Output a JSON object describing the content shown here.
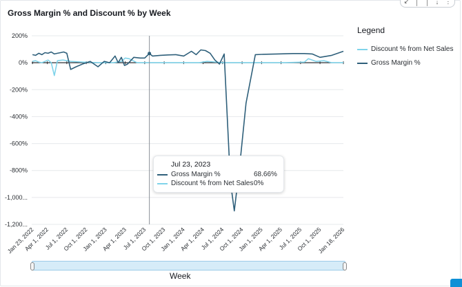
{
  "header": {
    "title": "Gross Margin % and Discount % by Week"
  },
  "toolbar_icons": [
    "collapse-icon",
    "bar-icon",
    "bar-icon",
    "sort-icon",
    "more-icon"
  ],
  "legend": {
    "title": "Legend",
    "items": [
      {
        "label": "Discount % from Net Sales",
        "color": "#7fd3ea"
      },
      {
        "label": "Gross Margin %",
        "color": "#2e5f7a"
      }
    ]
  },
  "tooltip": {
    "date": "Jul 23, 2023",
    "rows": [
      {
        "label": "Gross Margin %",
        "value": "68.66%",
        "color": "#2e5f7a"
      },
      {
        "label": "Discount % from Net Sales",
        "value": "0%",
        "color": "#7fd3ea"
      }
    ]
  },
  "x_axis_title": "Week",
  "chart_data": {
    "type": "line",
    "title": "Gross Margin % and Discount % by Week",
    "xlabel": "Week",
    "ylabel": "",
    "ylim": [
      -1200,
      200
    ],
    "yticks": [
      200,
      0,
      -200,
      -400,
      -600,
      -800,
      -1000,
      -1200
    ],
    "ytick_labels": [
      "200%",
      "0%",
      "-200%",
      "-400%",
      "-600%",
      "-800%",
      "-1,000...",
      "-1,200..."
    ],
    "xlim": [
      2022.05,
      2026.05
    ],
    "xtick_labels": [
      "Jan 23, 2022",
      "Apr 1, 2022",
      "Jul 1, 2022",
      "Oct 1, 2022",
      "Jan 1, 2023",
      "Apr 1, 2023",
      "Jul 1, 2023",
      "Oct 1, 2023",
      "Jan 1, 2024",
      "Apr 1, 2024",
      "Jul 1, 2024",
      "Oct 1, 2024",
      "Jan 1, 2025",
      "Apr 1, 2025",
      "Jul 1, 2025",
      "Oct 1, 2025",
      "Jan 18, 2026"
    ],
    "xtick_values": [
      2022.06,
      2022.25,
      2022.5,
      2022.75,
      2023.0,
      2023.25,
      2023.5,
      2023.75,
      2024.0,
      2024.25,
      2024.5,
      2024.75,
      2025.0,
      2025.25,
      2025.5,
      2025.75,
      2026.05
    ],
    "hover_x": 2023.56,
    "series": [
      {
        "name": "Gross Margin %",
        "color": "#2e5f7a",
        "x": [
          2022.06,
          2022.1,
          2022.14,
          2022.18,
          2022.22,
          2022.26,
          2022.3,
          2022.34,
          2022.38,
          2022.42,
          2022.46,
          2022.5,
          2022.55,
          2022.62,
          2022.7,
          2022.8,
          2022.9,
          2022.98,
          2023.05,
          2023.12,
          2023.16,
          2023.2,
          2023.24,
          2023.28,
          2023.36,
          2023.44,
          2023.5,
          2023.56,
          2023.6,
          2023.7,
          2023.8,
          2023.9,
          2024.0,
          2024.1,
          2024.16,
          2024.22,
          2024.28,
          2024.34,
          2024.4,
          2024.46,
          2024.52,
          2024.6,
          2024.65,
          2024.72,
          2024.8,
          2024.92,
          2025.0,
          2025.2,
          2025.4,
          2025.55,
          2025.65,
          2025.75,
          2025.9,
          2026.05
        ],
        "values": [
          60,
          55,
          70,
          60,
          75,
          70,
          80,
          65,
          70,
          75,
          80,
          70,
          -50,
          -30,
          -10,
          10,
          -30,
          10,
          0,
          50,
          0,
          40,
          -20,
          -10,
          40,
          35,
          35,
          68.66,
          50,
          55,
          58,
          60,
          50,
          85,
          60,
          95,
          90,
          70,
          20,
          -10,
          65,
          -880,
          -1100,
          -760,
          -300,
          60,
          62,
          65,
          68,
          68,
          65,
          40,
          55,
          85
        ]
      },
      {
        "name": "Discount % from Net Sales",
        "color": "#7fd3ea",
        "x": [
          2022.06,
          2022.1,
          2022.14,
          2022.18,
          2022.22,
          2022.26,
          2022.3,
          2022.34,
          2022.38,
          2022.45,
          2022.55,
          2022.7,
          2022.9,
          2023.1,
          2023.2,
          2023.25,
          2023.3,
          2023.4,
          2023.5,
          2023.56,
          2023.7,
          2024.0,
          2024.2,
          2024.3,
          2024.5,
          2024.9,
          2025.0,
          2025.3,
          2025.55,
          2025.6,
          2025.7,
          2025.8,
          2025.9,
          2026.05
        ],
        "values": [
          10,
          15,
          5,
          0,
          10,
          20,
          0,
          -95,
          15,
          20,
          10,
          5,
          0,
          0,
          10,
          35,
          30,
          0,
          0,
          0,
          0,
          0,
          0,
          10,
          0,
          0,
          0,
          0,
          5,
          30,
          10,
          15,
          0,
          0
        ]
      }
    ]
  }
}
